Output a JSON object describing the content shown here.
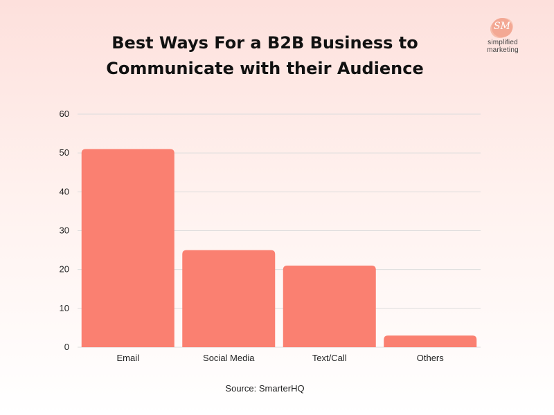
{
  "title_lines": [
    "Best Ways For a B2B Business to",
    "Communicate with their Audience"
  ],
  "logo": {
    "mark": "SM",
    "text": "simplified marketing",
    "color": "#f3a894"
  },
  "source": "Source: SmarterHQ",
  "chart_data": {
    "type": "bar",
    "title": "Best Ways For a B2B Business to Communicate with their Audience",
    "categories": [
      "Email",
      "Social Media",
      "Text/Call",
      "Others"
    ],
    "values": [
      51,
      25,
      21,
      3
    ],
    "xlabel": "",
    "ylabel": "",
    "ylim": [
      0,
      60
    ],
    "yticks": [
      0,
      10,
      20,
      30,
      40,
      50,
      60
    ],
    "grid": true,
    "bar_color": "#fa8071",
    "grid_color": "#dcdcdc"
  }
}
